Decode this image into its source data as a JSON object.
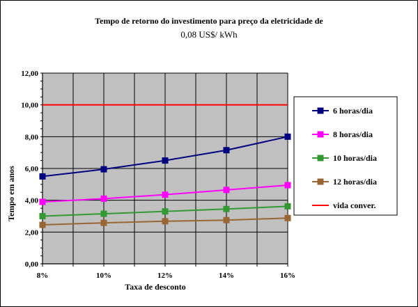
{
  "chart_data": {
    "type": "line",
    "title_line1": "Tempo de retorno do investimento para preço da eletricidade de",
    "title_line2": "0,08 US$/ kWh",
    "xlabel": "Taxa de desconto",
    "ylabel": "Tempo em anos",
    "x_tick_labels": [
      "8%",
      "10%",
      "12%",
      "14%",
      "16%"
    ],
    "y_tick_labels": [
      "0,00",
      "2,00",
      "4,00",
      "6,00",
      "8,00",
      "10,00",
      "12,00"
    ],
    "x": [
      8,
      10,
      12,
      14,
      16
    ],
    "xlim": [
      8,
      16
    ],
    "ylim": [
      0,
      12
    ],
    "grid": true,
    "plot_background": "#c0c0c0",
    "legend_position": "right",
    "series": [
      {
        "name": "6 horas/dia",
        "color": "#000080",
        "marker": "square",
        "values": [
          5.5,
          5.95,
          6.5,
          7.15,
          8.0
        ]
      },
      {
        "name": "8 horas/dia",
        "color": "#ff00ff",
        "marker": "square",
        "values": [
          3.9,
          4.1,
          4.35,
          4.65,
          4.95
        ]
      },
      {
        "name": "10 horas/dia",
        "color": "#339933",
        "marker": "square",
        "values": [
          3.0,
          3.15,
          3.3,
          3.45,
          3.62
        ]
      },
      {
        "name": "12 horas/dia",
        "color": "#996633",
        "marker": "square",
        "values": [
          2.45,
          2.58,
          2.68,
          2.75,
          2.88
        ]
      },
      {
        "name": "vida conver.",
        "color": "#ff0000",
        "marker": "none",
        "values": [
          10,
          10,
          10,
          10,
          10
        ]
      }
    ]
  }
}
